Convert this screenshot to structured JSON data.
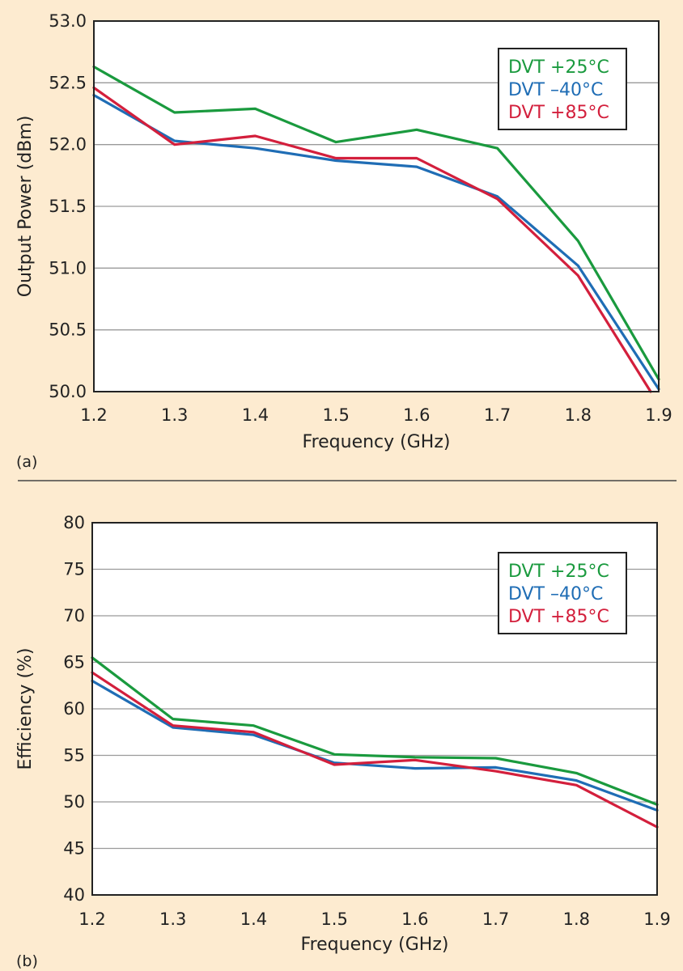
{
  "colors": {
    "background": "#fdebd0",
    "plot_background": "#ffffff",
    "grid": "#9a9a9a",
    "frame": "#222222",
    "divider": "#444444"
  },
  "chart_data": [
    {
      "type": "line",
      "panel_label": "(a)",
      "title": "",
      "xlabel": "Frequency (GHz)",
      "ylabel": "Output Power (dBm)",
      "xlim": [
        1.2,
        1.9
      ],
      "ylim": [
        50.0,
        53.0
      ],
      "x_ticks": [
        "1.2",
        "1.3",
        "1.4",
        "1.5",
        "1.6",
        "1.7",
        "1.8",
        "1.9"
      ],
      "y_ticks": [
        "50.0",
        "50.5",
        "51.0",
        "51.5",
        "52.0",
        "52.5",
        "53.0"
      ],
      "grid": "horizontal",
      "legend_position": "top-right",
      "series": [
        {
          "name": "DVT +25°C",
          "color": "#1a9a3e",
          "x": [
            1.2,
            1.3,
            1.4,
            1.5,
            1.6,
            1.7,
            1.8,
            1.9
          ],
          "y": [
            52.63,
            52.26,
            52.29,
            52.02,
            52.12,
            51.97,
            51.22,
            50.1
          ]
        },
        {
          "name": "DVT –40°C",
          "color": "#1f6db5",
          "x": [
            1.2,
            1.3,
            1.4,
            1.5,
            1.6,
            1.7,
            1.8,
            1.9
          ],
          "y": [
            52.4,
            52.03,
            51.97,
            51.87,
            51.82,
            51.58,
            51.02,
            50.02
          ]
        },
        {
          "name": "DVT +85°C",
          "color": "#d31f3c",
          "x": [
            1.2,
            1.3,
            1.4,
            1.5,
            1.6,
            1.7,
            1.8,
            1.89
          ],
          "y": [
            52.46,
            52.0,
            52.07,
            51.89,
            51.89,
            51.56,
            50.94,
            50.0
          ]
        }
      ]
    },
    {
      "type": "line",
      "panel_label": "(b)",
      "title": "",
      "xlabel": "Frequency (GHz)",
      "ylabel": "Efficiency (%)",
      "xlim": [
        1.2,
        1.9
      ],
      "ylim": [
        40,
        80
      ],
      "x_ticks": [
        "1.2",
        "1.3",
        "1.4",
        "1.5",
        "1.6",
        "1.7",
        "1.8",
        "1.9"
      ],
      "y_ticks": [
        "40",
        "45",
        "50",
        "55",
        "60",
        "65",
        "70",
        "75",
        "80"
      ],
      "grid": "horizontal",
      "legend_position": "top-right",
      "series": [
        {
          "name": "DVT +25°C",
          "color": "#1a9a3e",
          "x": [
            1.2,
            1.3,
            1.4,
            1.5,
            1.6,
            1.7,
            1.8,
            1.9
          ],
          "y": [
            65.5,
            58.9,
            58.2,
            55.1,
            54.8,
            54.7,
            53.1,
            49.7
          ]
        },
        {
          "name": "DVT –40°C",
          "color": "#1f6db5",
          "x": [
            1.2,
            1.3,
            1.4,
            1.5,
            1.6,
            1.7,
            1.8,
            1.9
          ],
          "y": [
            63.0,
            58.0,
            57.2,
            54.2,
            53.6,
            53.7,
            52.3,
            49.1
          ]
        },
        {
          "name": "DVT +85°C",
          "color": "#d31f3c",
          "x": [
            1.2,
            1.3,
            1.4,
            1.5,
            1.6,
            1.7,
            1.8,
            1.9
          ],
          "y": [
            63.9,
            58.2,
            57.5,
            54.0,
            54.5,
            53.3,
            51.8,
            47.3
          ]
        }
      ]
    }
  ]
}
